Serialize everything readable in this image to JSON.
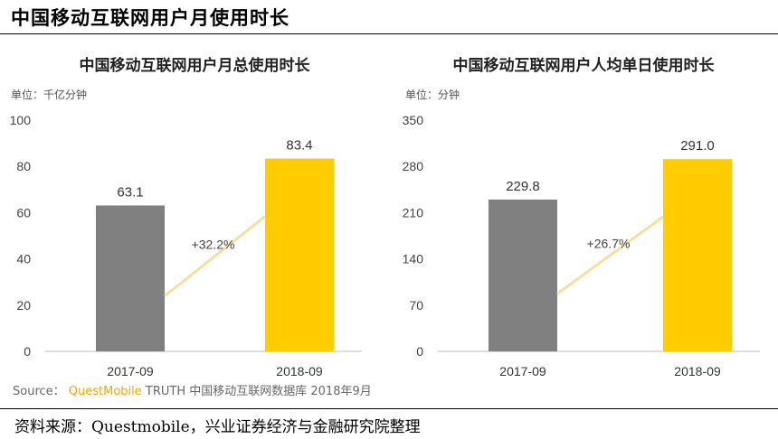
{
  "page_title": "中国移动互联网用户月使用时长",
  "source": {
    "label": "Source：",
    "brand": "QuestMobile",
    "rest": "TRUTH 中国移动互联网数据库 2018年9月"
  },
  "footer": "资料来源：Questmobile，兴业证券经济与金融研究院整理",
  "colors": {
    "bar_2017": "#808080",
    "bar_2018": "#FFCC00",
    "growth_line": "#F5DFA0"
  },
  "chart_data": [
    {
      "type": "bar",
      "title": "中国移动互联网用户月总使用时长",
      "unit_label": "单位：千亿分钟",
      "categories": [
        "2017-09",
        "2018-09"
      ],
      "values": [
        63.1,
        83.4
      ],
      "value_labels": [
        "63.1",
        "83.4"
      ],
      "ylim": [
        0,
        100
      ],
      "yticks": [
        "0",
        "20",
        "40",
        "60",
        "80",
        "100"
      ],
      "grid": false,
      "annotation": "+32.2%"
    },
    {
      "type": "bar",
      "title": "中国移动互联网用户人均单日使用时长",
      "unit_label": "单位：分钟",
      "categories": [
        "2017-09",
        "2018-09"
      ],
      "values": [
        229.8,
        291.0
      ],
      "value_labels": [
        "229.8",
        "291.0"
      ],
      "ylim": [
        0,
        350
      ],
      "yticks": [
        "0",
        "70",
        "140",
        "210",
        "280",
        "350"
      ],
      "grid": false,
      "annotation": "+26.7%"
    }
  ]
}
